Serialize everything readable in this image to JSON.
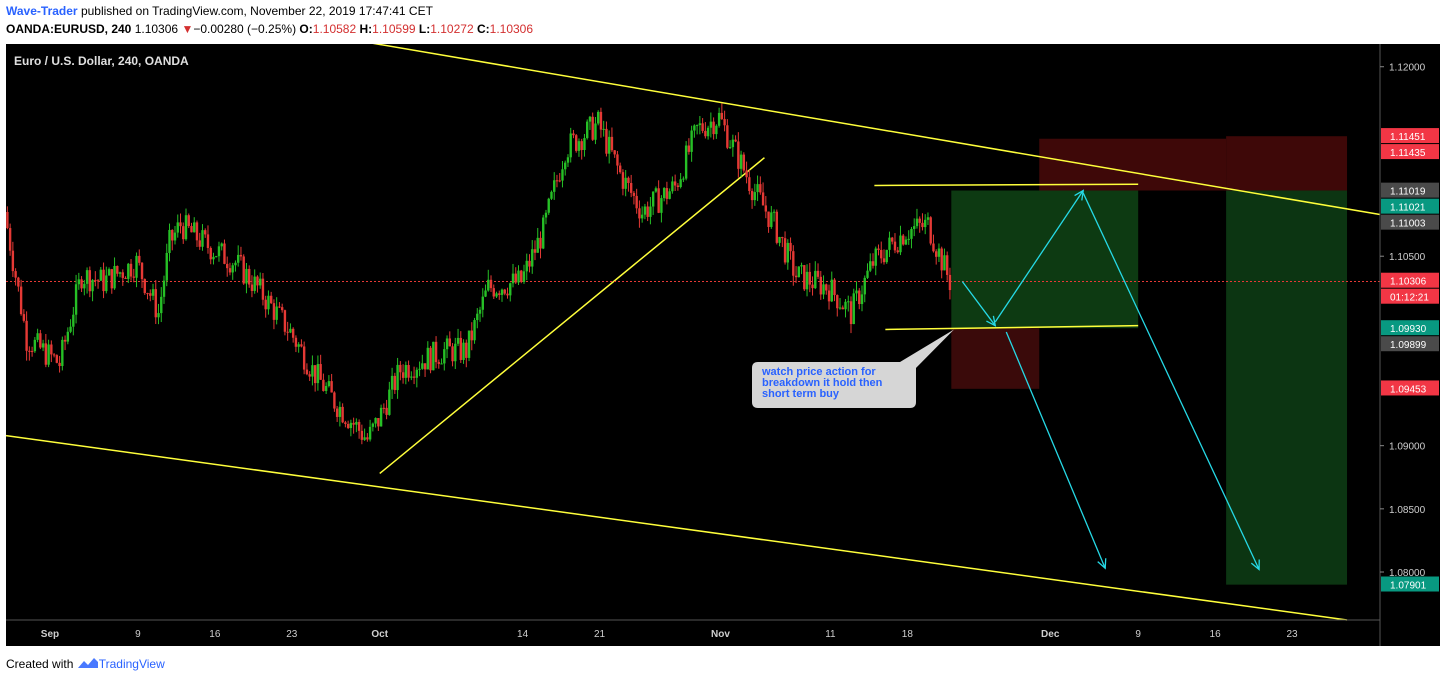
{
  "header": {
    "author": "Wave-Trader",
    "published": "published on TradingView.com, November 22, 2019 17:47:41 CET",
    "symbol": "OANDA:EURUSD, 240",
    "last": "1.10306",
    "arrow": "▼",
    "change": "−0.00280 (−0.25%)",
    "o_label": "O:",
    "o_val": "1.10582",
    "h_label": "H:",
    "h_val": "1.10599",
    "l_label": "L:",
    "l_val": "1.10272",
    "c_label": "C:",
    "c_val": "1.10306"
  },
  "footer": {
    "created_with": "Created with",
    "brand": "TradingView"
  },
  "chart_data": {
    "type": "candlestick",
    "title": "Euro / U.S. Dollar, 240, OANDA",
    "ylim": [
      1.0762,
      1.1218
    ],
    "yticks": [
      "1.12000",
      "1.10500",
      "1.09000",
      "1.08500",
      "1.08000"
    ],
    "ytick_values": [
      1.12,
      1.105,
      1.09,
      1.085,
      1.08
    ],
    "xticks": [
      "Sep",
      "9",
      "16",
      "23",
      "Oct",
      "14",
      "21",
      "Nov",
      "11",
      "18",
      "Dec",
      "9",
      "16",
      "23"
    ],
    "x_range": [
      "2019-08-28",
      "2019-12-31"
    ],
    "xtick_dates": [
      "2019-09-01",
      "2019-09-09",
      "2019-09-16",
      "2019-09-23",
      "2019-10-01",
      "2019-10-14",
      "2019-10-21",
      "2019-11-01",
      "2019-11-11",
      "2019-11-18",
      "2019-12-01",
      "2019-12-09",
      "2019-12-16",
      "2019-12-23"
    ],
    "series": [
      {
        "dates": [
          "2019-08-28",
          "2019-08-30",
          "2019-09-02",
          "2019-09-04",
          "2019-09-06",
          "2019-09-09",
          "2019-09-11",
          "2019-09-12",
          "2019-09-13",
          "2019-09-16",
          "2019-09-18",
          "2019-09-20",
          "2019-09-23",
          "2019-09-25",
          "2019-09-27",
          "2019-09-30",
          "2019-10-01",
          "2019-10-03",
          "2019-10-07",
          "2019-10-09",
          "2019-10-11",
          "2019-10-14",
          "2019-10-16",
          "2019-10-18",
          "2019-10-21",
          "2019-10-23",
          "2019-10-25",
          "2019-10-28",
          "2019-10-30",
          "2019-10-31",
          "2019-11-01",
          "2019-11-04",
          "2019-11-06",
          "2019-11-08",
          "2019-11-11",
          "2019-11-13",
          "2019-11-15",
          "2019-11-18",
          "2019-11-20",
          "2019-11-22"
        ],
        "close": [
          1.1085,
          1.0985,
          1.0965,
          1.1035,
          1.103,
          1.1045,
          1.1005,
          1.106,
          1.1075,
          1.1055,
          1.1045,
          1.1025,
          1.099,
          1.096,
          1.0935,
          1.0905,
          1.092,
          1.096,
          1.0975,
          1.0975,
          1.1025,
          1.103,
          1.107,
          1.1135,
          1.1155,
          1.1115,
          1.1085,
          1.1105,
          1.115,
          1.1155,
          1.116,
          1.1105,
          1.1075,
          1.1035,
          1.1025,
          1.1005,
          1.1045,
          1.107,
          1.1075,
          1.103
        ]
      }
    ],
    "annotation": "watch price action for breakdown it hold then short term buy",
    "price_labels": [
      {
        "value": "1.11451",
        "color": "#f23645"
      },
      {
        "value": "1.11435",
        "color": "#f23645"
      },
      {
        "value": "1.11019",
        "color": "#4a4a4a"
      },
      {
        "value": "1.11021",
        "color": "#089981"
      },
      {
        "value": "1.11003",
        "color": "#4a4a4a"
      },
      {
        "value": "1.10306",
        "color": "#f23645"
      },
      {
        "value": "01:12:21",
        "color": "#f23645"
      },
      {
        "value": "1.09930",
        "color": "#089981"
      },
      {
        "value": "1.09899",
        "color": "#4a4a4a"
      },
      {
        "value": "1.09453",
        "color": "#f23645"
      },
      {
        "value": "1.07901",
        "color": "#089981"
      }
    ],
    "colors": {
      "up": "#26c026",
      "down": "#e53935",
      "trendline": "#ffff3b",
      "arrow": "#26d9e6",
      "background": "#000000"
    }
  }
}
